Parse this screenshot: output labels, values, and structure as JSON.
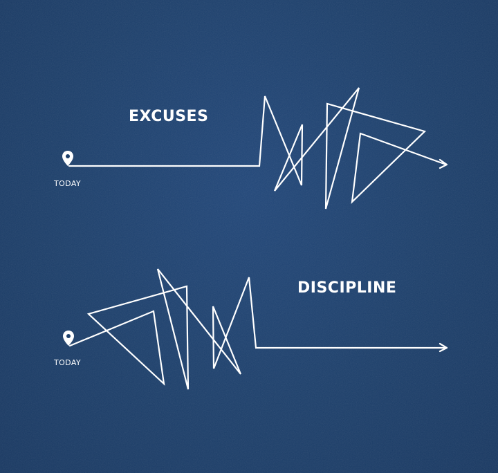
{
  "excuses": {
    "title": "EXCUSES",
    "start_label": "TODAY"
  },
  "discipline": {
    "title": "DISCIPLINE",
    "start_label": "TODAY"
  },
  "colors": {
    "background": "#1c3f6b",
    "line": "#ffffff"
  },
  "icons": [
    "location-pin-icon",
    "arrow-head-icon"
  ]
}
